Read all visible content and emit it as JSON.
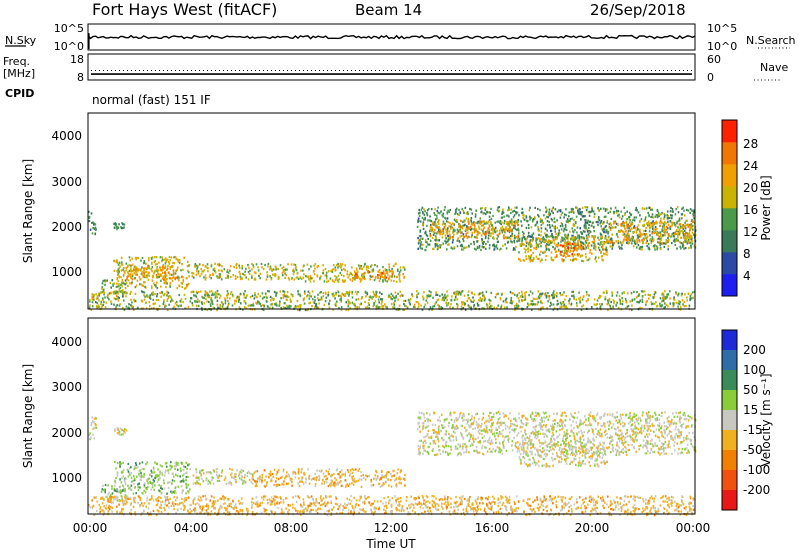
{
  "header": {
    "station": "Fort Hays West (fitACF)",
    "beam": "Beam 14",
    "date": "26/Sep/2018"
  },
  "noise_panel": {
    "left_label": "N.Sky",
    "right_label": "N.Search",
    "tick_high": "10^5",
    "tick_low": "10^0"
  },
  "freq_panel": {
    "left_label_line1": "Freq.",
    "left_label_line2": "[MHz]",
    "right_label": "Nave",
    "left_ticks": [
      "18",
      "8"
    ],
    "right_ticks": [
      "60",
      "0"
    ]
  },
  "cpid": {
    "label": "CPID",
    "mode": "normal (fast) 151 IF"
  },
  "x_axis": {
    "title": "Time UT",
    "ticks": [
      "00:00",
      "04:00",
      "08:00",
      "12:00",
      "16:00",
      "20:00",
      "00:00"
    ]
  },
  "power_panel": {
    "ylabel": "Slant Range [km]",
    "y_ticks": [
      "4000",
      "3000",
      "2000",
      "1000"
    ],
    "cbar_label": "Power [dB]",
    "cbar_ticks": [
      "28",
      "24",
      "20",
      "16",
      "12",
      "8",
      "4"
    ]
  },
  "velocity_panel": {
    "ylabel": "Slant Range [km]",
    "y_ticks": [
      "4000",
      "3000",
      "2000",
      "1000"
    ],
    "cbar_label": "Velocity [m s⁻¹]",
    "cbar_ticks": [
      "200",
      "100",
      "50",
      "15",
      "-15",
      "-50",
      "-100",
      "-200"
    ]
  },
  "colors": {
    "power_scale": [
      "#1e1ef0",
      "#2a4aa6",
      "#3a7a5a",
      "#4a9a4a",
      "#c8b400",
      "#f0a000",
      "#f07800",
      "#ff2000"
    ],
    "velocity_scale": [
      "#1e2ad8",
      "#2e6ea8",
      "#3a8a5a",
      "#8acd3a",
      "#c8c8c0",
      "#f0b020",
      "#f08000",
      "#f05010",
      "#e81818"
    ]
  },
  "chart_data": [
    {
      "type": "line",
      "title": "N.Sky / N.Search",
      "x": [
        "00:00",
        "04:00",
        "08:00",
        "12:00",
        "16:00",
        "20:00",
        "24:00"
      ],
      "series": [
        {
          "name": "N.Sky",
          "values": [
            300,
            310,
            300,
            290,
            300,
            320,
            310
          ]
        },
        {
          "name": "N.Search",
          "values": [
            250,
            260,
            250,
            240,
            250,
            270,
            260
          ]
        }
      ],
      "ylim": [
        1,
        100000
      ]
    },
    {
      "type": "line",
      "title": "Freq. / Nave",
      "x": [
        "00:00",
        "04:00",
        "08:00",
        "12:00",
        "16:00",
        "20:00",
        "24:00"
      ],
      "series": [
        {
          "name": "Freq. [MHz]",
          "values": [
            10.3,
            10.3,
            10.3,
            10.3,
            10.3,
            10.3,
            10.3
          ]
        },
        {
          "name": "Nave",
          "values": [
            22,
            22,
            22,
            22,
            22,
            22,
            22
          ]
        }
      ],
      "ylim": [
        8,
        18
      ]
    },
    {
      "type": "heatmap",
      "title": "Power [dB]",
      "xlabel": "Time UT",
      "ylabel": "Slant Range [km]",
      "xlim": [
        0,
        24
      ],
      "ylim": [
        180,
        4500
      ],
      "zlim": [
        0,
        30
      ],
      "bands": [
        {
          "t": [
            0.0,
            0.3
          ],
          "r": [
            1850,
            2350
          ],
          "v": 10
        },
        {
          "t": [
            1.0,
            1.5
          ],
          "r": [
            1950,
            2100
          ],
          "v": 10
        },
        {
          "t": [
            0.5,
            1.5
          ],
          "r": [
            500,
            850
          ],
          "v": 14
        },
        {
          "t": [
            1.0,
            4.0
          ],
          "r": [
            650,
            1350
          ],
          "v": 17
        },
        {
          "t": [
            1.5,
            3.5
          ],
          "r": [
            850,
            1150
          ],
          "v": 21
        },
        {
          "t": [
            4.0,
            8.0
          ],
          "r": [
            850,
            1200
          ],
          "v": 16
        },
        {
          "t": [
            8.0,
            12.5
          ],
          "r": [
            800,
            1200
          ],
          "v": 17
        },
        {
          "t": [
            10.5,
            12.5
          ],
          "r": [
            850,
            1050
          ],
          "v": 23
        },
        {
          "t": [
            13.0,
            24.0
          ],
          "r": [
            1500,
            2450
          ],
          "v": 12
        },
        {
          "t": [
            13.5,
            17.0
          ],
          "r": [
            1750,
            2150
          ],
          "v": 20
        },
        {
          "t": [
            17.0,
            20.5
          ],
          "r": [
            1250,
            1800
          ],
          "v": 18
        },
        {
          "t": [
            18.5,
            19.5
          ],
          "r": [
            1350,
            1650
          ],
          "v": 25
        },
        {
          "t": [
            20.5,
            24.0
          ],
          "r": [
            1650,
            2150
          ],
          "v": 20
        },
        {
          "t": [
            0.0,
            24.0
          ],
          "r": [
            180,
            600
          ],
          "v": 15
        }
      ]
    },
    {
      "type": "heatmap",
      "title": "Velocity [m s⁻¹]",
      "xlabel": "Time UT",
      "ylabel": "Slant Range [km]",
      "xlim": [
        0,
        24
      ],
      "ylim": [
        180,
        4500
      ],
      "zlim": [
        -200,
        200
      ],
      "bands": [
        {
          "t": [
            0.0,
            0.3
          ],
          "r": [
            1850,
            2350
          ],
          "v": 0
        },
        {
          "t": [
            1.0,
            1.5
          ],
          "r": [
            1950,
            2100
          ],
          "v": 0
        },
        {
          "t": [
            0.5,
            1.5
          ],
          "r": [
            500,
            850
          ],
          "v": 30
        },
        {
          "t": [
            1.0,
            4.0
          ],
          "r": [
            650,
            1350
          ],
          "v": 30
        },
        {
          "t": [
            4.0,
            6.5
          ],
          "r": [
            850,
            1200
          ],
          "v": 0
        },
        {
          "t": [
            6.5,
            12.5
          ],
          "r": [
            800,
            1200
          ],
          "v": -30
        },
        {
          "t": [
            13.0,
            24.0
          ],
          "r": [
            1500,
            2450
          ],
          "v": 0
        },
        {
          "t": [
            17.0,
            20.5
          ],
          "r": [
            1250,
            1800
          ],
          "v": 0
        },
        {
          "t": [
            0.0,
            24.0
          ],
          "r": [
            180,
            600
          ],
          "v": -30
        }
      ]
    }
  ]
}
